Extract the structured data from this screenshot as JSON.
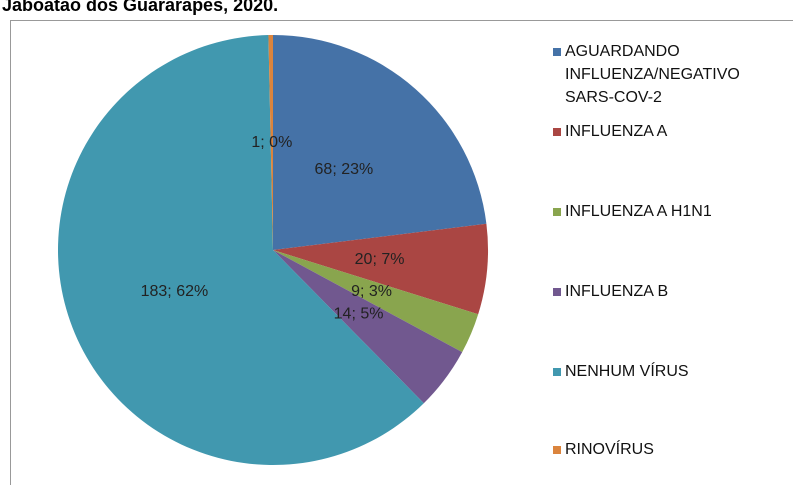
{
  "chart_data": {
    "type": "pie",
    "title": "Jaboatão dos Guararapes, 2020.",
    "categories": [
      "AGUARDANDO INFLUENZA/NEGATIVO SARS-COV-2",
      "INFLUENZA A",
      "INFLUENZA A H1N1",
      "INFLUENZA B",
      "NENHUM VÍRUS",
      "RINOVÍRUS"
    ],
    "values": [
      68,
      20,
      9,
      14,
      183,
      1
    ],
    "value_labels": [
      "68; 23%",
      "20; 7%",
      "9; 3%",
      "14; 5%",
      "183; 62%",
      "1; 0%"
    ],
    "colors": [
      "#4572a7",
      "#aa4643",
      "#89a54e",
      "#71588f",
      "#4198af",
      "#db843d"
    ],
    "legend": "right"
  }
}
